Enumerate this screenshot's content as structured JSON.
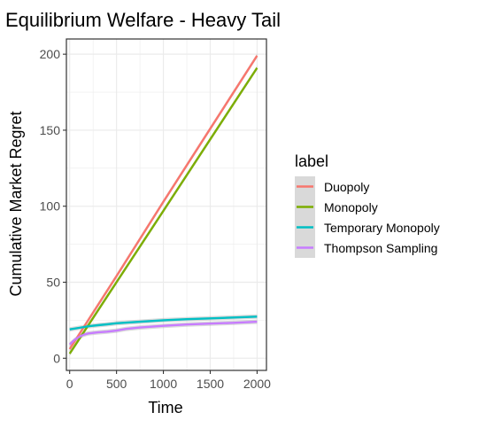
{
  "chart_data": {
    "type": "line",
    "title": "Equilibrium Welfare - Heavy Tail",
    "xlabel": "Time",
    "ylabel": "Cumulative Market Regret",
    "xlim": [
      -35,
      2100
    ],
    "ylim": [
      -8,
      210
    ],
    "xticks": [
      0,
      500,
      1000,
      1500,
      2000
    ],
    "yticks": [
      0,
      50,
      100,
      150,
      200
    ],
    "grid": true,
    "legend_position": "right",
    "legend_title": "label",
    "series": [
      {
        "name": "Duopoly",
        "color": "#F8766D",
        "x": [
          0,
          500,
          1000,
          1500,
          2000
        ],
        "y": [
          6,
          54,
          103,
          151,
          199
        ]
      },
      {
        "name": "Monopoly",
        "color": "#7CAE00",
        "x": [
          0,
          500,
          1000,
          1500,
          2000
        ],
        "y": [
          3,
          50,
          97,
          144,
          191
        ]
      },
      {
        "name": "Temporary Monopoly",
        "color": "#00BFC4",
        "x": [
          0,
          100,
          200,
          300,
          400,
          500,
          750,
          1000,
          1250,
          1500,
          1750,
          2000
        ],
        "y": [
          19,
          20,
          21,
          21.7,
          22.3,
          23,
          24,
          25,
          25.7,
          26.2,
          26.8,
          27.4
        ]
      },
      {
        "name": "Thompson Sampling",
        "color": "#C77CFF",
        "x": [
          0,
          50,
          100,
          150,
          200,
          300,
          400,
          500,
          600,
          750,
          1000,
          1250,
          1500,
          1750,
          2000
        ],
        "y": [
          9,
          12,
          14,
          15.5,
          16.3,
          17,
          17.5,
          18.2,
          19.3,
          20.2,
          21.3,
          22.2,
          22.8,
          23.3,
          24
        ]
      }
    ]
  }
}
